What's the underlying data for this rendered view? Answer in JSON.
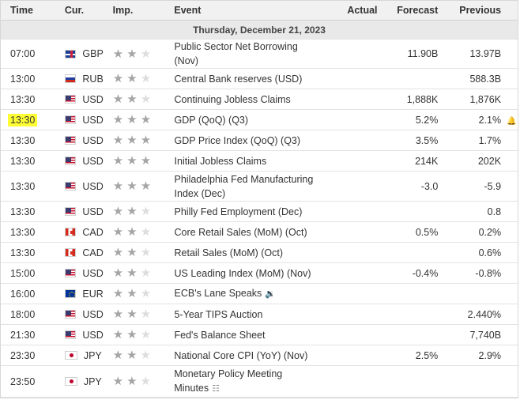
{
  "header": {
    "time": "Time",
    "currency": "Cur.",
    "importance": "Imp.",
    "event": "Event",
    "actual": "Actual",
    "forecast": "Forecast",
    "previous": "Previous"
  },
  "day_label": "Thursday, December 21, 2023",
  "colors": {
    "highlight": "#ffff33",
    "star_active": "#a5a5a5",
    "star_inactive": "#dddddd"
  },
  "rows": [
    {
      "time": "07:00",
      "currency": "GBP",
      "flag": "gb-flag-icon",
      "importance": 2,
      "event": [
        "Public Sector Net Borrowing",
        "(Nov)"
      ],
      "actual": "",
      "forecast": "11.90B",
      "previous": "13.97B"
    },
    {
      "time": "13:00",
      "currency": "RUB",
      "flag": "ru-flag-icon",
      "importance": 2,
      "event": [
        "Central Bank reserves (USD)"
      ],
      "actual": "",
      "forecast": "",
      "previous": "588.3B"
    },
    {
      "time": "13:30",
      "currency": "USD",
      "flag": "us-flag-icon",
      "importance": 2,
      "event": [
        "Continuing Jobless Claims"
      ],
      "actual": "",
      "forecast": "1,888K",
      "previous": "1,876K"
    },
    {
      "time": "13:30",
      "currency": "USD",
      "flag": "us-flag-icon",
      "importance": 3,
      "event": [
        "GDP (QoQ) (Q3)"
      ],
      "actual": "",
      "forecast": "5.2%",
      "previous": "2.1%",
      "highlighted": true,
      "alert_icon": "bell-plus-icon"
    },
    {
      "time": "13:30",
      "currency": "USD",
      "flag": "us-flag-icon",
      "importance": 3,
      "event": [
        "GDP Price Index (QoQ) (Q3)"
      ],
      "actual": "",
      "forecast": "3.5%",
      "previous": "1.7%"
    },
    {
      "time": "13:30",
      "currency": "USD",
      "flag": "us-flag-icon",
      "importance": 3,
      "event": [
        "Initial Jobless Claims"
      ],
      "actual": "",
      "forecast": "214K",
      "previous": "202K"
    },
    {
      "time": "13:30",
      "currency": "USD",
      "flag": "us-flag-icon",
      "importance": 3,
      "event": [
        "Philadelphia Fed Manufacturing",
        "Index (Dec)"
      ],
      "actual": "",
      "forecast": "-3.0",
      "previous": "-5.9"
    },
    {
      "time": "13:30",
      "currency": "USD",
      "flag": "us-flag-icon",
      "importance": 2,
      "event": [
        "Philly Fed Employment (Dec)"
      ],
      "actual": "",
      "forecast": "",
      "previous": "0.8"
    },
    {
      "time": "13:30",
      "currency": "CAD",
      "flag": "ca-flag-icon",
      "importance": 2,
      "event": [
        "Core Retail Sales (MoM) (Oct)"
      ],
      "actual": "",
      "forecast": "0.5%",
      "previous": "0.2%"
    },
    {
      "time": "13:30",
      "currency": "CAD",
      "flag": "ca-flag-icon",
      "importance": 2,
      "event": [
        "Retail Sales (MoM) (Oct)"
      ],
      "actual": "",
      "forecast": "",
      "previous": "0.6%"
    },
    {
      "time": "15:00",
      "currency": "USD",
      "flag": "us-flag-icon",
      "importance": 2,
      "event": [
        "US Leading Index (MoM) (Nov)"
      ],
      "actual": "",
      "forecast": "-0.4%",
      "previous": "-0.8%"
    },
    {
      "time": "16:00",
      "currency": "EUR",
      "flag": "eu-flag-icon",
      "importance": 2,
      "event": [
        "ECB's Lane Speaks"
      ],
      "event_icon": "speaker-icon",
      "actual": "",
      "forecast": "",
      "previous": ""
    },
    {
      "time": "18:00",
      "currency": "USD",
      "flag": "us-flag-icon",
      "importance": 2,
      "event": [
        "5-Year TIPS Auction"
      ],
      "actual": "",
      "forecast": "",
      "previous": "2.440%"
    },
    {
      "time": "21:30",
      "currency": "USD",
      "flag": "us-flag-icon",
      "importance": 2,
      "event": [
        "Fed's Balance Sheet"
      ],
      "actual": "",
      "forecast": "",
      "previous": "7,740B"
    },
    {
      "time": "23:30",
      "currency": "JPY",
      "flag": "jp-flag-icon",
      "importance": 2,
      "event": [
        "National Core CPI (YoY) (Nov)"
      ],
      "actual": "",
      "forecast": "2.5%",
      "previous": "2.9%"
    },
    {
      "time": "23:50",
      "currency": "JPY",
      "flag": "jp-flag-icon",
      "importance": 2,
      "event": [
        "Monetary Policy Meeting",
        "Minutes"
      ],
      "event_icon": "document-icon",
      "actual": "",
      "forecast": "",
      "previous": ""
    }
  ]
}
